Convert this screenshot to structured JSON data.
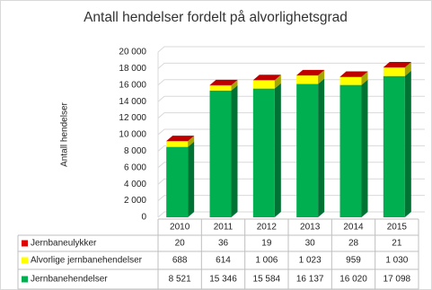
{
  "chart_data": {
    "type": "bar3d-stacked",
    "title": "Antall hendelser fordelt på alvorlighetsgrad",
    "y_label": "Antall hendelser",
    "categories": [
      "2010",
      "2011",
      "2012",
      "2013",
      "2014",
      "2015"
    ],
    "series": [
      {
        "name": "Jernbaneulykker",
        "color": "#e00000",
        "values": [
          20,
          36,
          19,
          30,
          28,
          21
        ]
      },
      {
        "name": "Alvorlige jernbanehendelser",
        "color": "#ffff00",
        "values": [
          688,
          614,
          1006,
          1023,
          959,
          1030
        ],
        "value_labels": [
          "688",
          "614",
          "1 006",
          "1 023",
          "959",
          "1 030"
        ]
      },
      {
        "name": "Jernbanehendelser",
        "color": "#00b050",
        "values": [
          8521,
          15346,
          15584,
          16137,
          16020,
          17098
        ],
        "value_labels": [
          "8 521",
          "15 346",
          "15 584",
          "16 137",
          "16 020",
          "17 098"
        ]
      }
    ],
    "ylim": [
      0,
      20000
    ],
    "yticks": [
      0,
      {
        "value": 2000,
        "label": "2 000"
      },
      {
        "value": 4000,
        "label": "4 000"
      },
      {
        "value": 6000,
        "label": "6 000"
      },
      {
        "value": 8000,
        "label": "8 000"
      },
      {
        "value": 10000,
        "label": "10 000"
      },
      {
        "value": 12000,
        "label": "12 000"
      },
      {
        "value": 14000,
        "label": "14 000"
      },
      {
        "value": 16000,
        "label": "16 000"
      },
      {
        "value": 18000,
        "label": "18 000"
      },
      {
        "value": 20000,
        "label": "20 000"
      }
    ],
    "grid": true
  }
}
